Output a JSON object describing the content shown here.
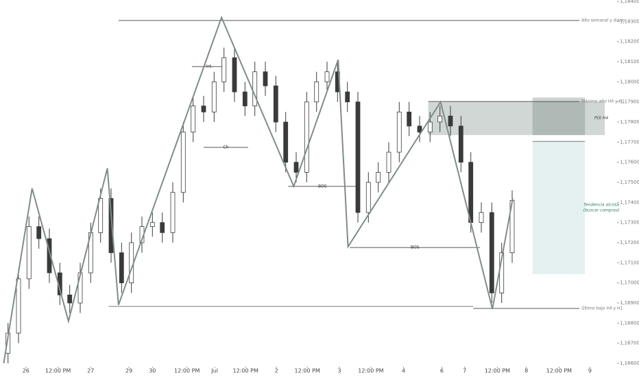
{
  "chart_data": {
    "type": "candlestick",
    "xlim": [
      0,
      100
    ],
    "ylim": [
      1.16583,
      1.18407
    ],
    "xticks": [
      {
        "value": 4.2,
        "label": "26"
      },
      {
        "value": 9.4,
        "label": "12:00 PM"
      },
      {
        "value": 14.7,
        "label": "27"
      },
      {
        "value": 20.9,
        "label": "29"
      },
      {
        "value": 24.7,
        "label": "30"
      },
      {
        "value": 30.3,
        "label": "12:00 PM"
      },
      {
        "value": 34.8,
        "label": "Jul"
      },
      {
        "value": 39.8,
        "label": "12:00 PM"
      },
      {
        "value": 44.8,
        "label": "2"
      },
      {
        "value": 49.8,
        "label": "12:00 PM"
      },
      {
        "value": 55,
        "label": "3"
      },
      {
        "value": 60.1,
        "label": "12:00 PM"
      },
      {
        "value": 65.4,
        "label": "4"
      },
      {
        "value": 71.6,
        "label": "6"
      },
      {
        "value": 75.3,
        "label": "7"
      },
      {
        "value": 80.6,
        "label": "12:00 PM"
      },
      {
        "value": 85.3,
        "label": "8"
      },
      {
        "value": 90.6,
        "label": "12:00 PM"
      },
      {
        "value": 95.6,
        "label": "9"
      }
    ],
    "yticks": [
      {
        "value": 1.166,
        "label": "1,16600"
      },
      {
        "value": 1.167,
        "label": "1,16700"
      },
      {
        "value": 1.168,
        "label": "1,16800"
      },
      {
        "value": 1.169,
        "label": "1,16900"
      },
      {
        "value": 1.17,
        "label": "1,17000"
      },
      {
        "value": 1.171,
        "label": "1,17100"
      },
      {
        "value": 1.172,
        "label": "1,17200"
      },
      {
        "value": 1.173,
        "label": "1,17300"
      },
      {
        "value": 1.174,
        "label": "1,17400"
      },
      {
        "value": 1.175,
        "label": "1,17500"
      },
      {
        "value": 1.176,
        "label": "1,17600"
      },
      {
        "value": 1.177,
        "label": "1,17700"
      },
      {
        "value": 1.178,
        "label": "1,17800"
      },
      {
        "value": 1.179,
        "label": "1,17900"
      },
      {
        "value": 1.18,
        "label": "1,18000"
      },
      {
        "value": 1.181,
        "label": "1,18100"
      },
      {
        "value": 1.182,
        "label": "1,18200"
      },
      {
        "value": 1.183,
        "label": "1,18300"
      },
      {
        "value": 1.184,
        "label": "1,18400"
      }
    ],
    "up_color": "#ffffff",
    "down_color": "#3a3a3a",
    "wick_color": "#3a3a3a",
    "x": [
      1.3,
      3,
      4.7,
      6.3,
      8,
      9.7,
      11.3,
      13,
      14.7,
      16.3,
      18,
      19.7,
      21.3,
      23,
      24.7,
      26.3,
      28,
      29.7,
      31.3,
      33,
      34.7,
      36.3,
      38,
      39.7,
      41.3,
      43,
      44.7,
      46.3,
      48,
      49.7,
      51.3,
      53,
      54.7,
      56.3,
      58,
      59.7,
      61.3,
      63,
      64.7,
      66.3,
      68,
      69.7,
      71.3,
      73,
      74.7,
      76.3,
      78,
      79.7,
      81.3,
      83
    ],
    "open": [
      1.1665,
      1.1675,
      1.1702,
      1.1728,
      1.1722,
      1.1705,
      1.1694,
      1.169,
      1.1705,
      1.1725,
      1.1742,
      1.1715,
      1.17,
      1.172,
      1.1728,
      1.173,
      1.1725,
      1.1745,
      1.1775,
      1.1788,
      1.1785,
      1.18,
      1.1812,
      1.1795,
      1.1788,
      1.1805,
      1.1798,
      1.178,
      1.176,
      1.1755,
      1.179,
      1.18,
      1.1805,
      1.1795,
      1.179,
      1.1735,
      1.175,
      1.1755,
      1.1765,
      1.1785,
      1.1778,
      1.1775,
      1.178,
      1.1783,
      1.1778,
      1.176,
      1.173,
      1.1735,
      1.1695,
      1.1715
    ],
    "high": [
      1.168,
      1.1707,
      1.1733,
      1.1733,
      1.1727,
      1.171,
      1.1699,
      1.171,
      1.173,
      1.1747,
      1.1747,
      1.172,
      1.1725,
      1.1733,
      1.1735,
      1.1735,
      1.175,
      1.178,
      1.1793,
      1.1793,
      1.1805,
      1.1817,
      1.1817,
      1.18,
      1.181,
      1.181,
      1.1803,
      1.1785,
      1.1765,
      1.1795,
      1.1805,
      1.181,
      1.181,
      1.18,
      1.1795,
      1.1755,
      1.176,
      1.177,
      1.179,
      1.179,
      1.1783,
      1.1785,
      1.1788,
      1.1788,
      1.1783,
      1.1765,
      1.174,
      1.174,
      1.172,
      1.1746
    ],
    "low": [
      1.166,
      1.167,
      1.1697,
      1.1717,
      1.17,
      1.1689,
      1.1685,
      1.1685,
      1.17,
      1.172,
      1.171,
      1.1695,
      1.1695,
      1.1715,
      1.1723,
      1.172,
      1.172,
      1.174,
      1.177,
      1.178,
      1.178,
      1.1795,
      1.179,
      1.1783,
      1.1783,
      1.1793,
      1.1775,
      1.1755,
      1.175,
      1.175,
      1.1785,
      1.1795,
      1.179,
      1.1785,
      1.173,
      1.173,
      1.1745,
      1.175,
      1.176,
      1.1773,
      1.177,
      1.177,
      1.1775,
      1.1773,
      1.1755,
      1.1725,
      1.1725,
      1.169,
      1.169,
      1.171
    ],
    "close": [
      1.1675,
      1.1702,
      1.1728,
      1.1722,
      1.1705,
      1.1694,
      1.169,
      1.1705,
      1.1725,
      1.1742,
      1.1715,
      1.17,
      1.172,
      1.1728,
      1.173,
      1.1725,
      1.1745,
      1.1775,
      1.1788,
      1.1785,
      1.18,
      1.1812,
      1.1795,
      1.1788,
      1.1805,
      1.1798,
      1.178,
      1.176,
      1.1755,
      1.179,
      1.18,
      1.1805,
      1.1795,
      1.179,
      1.1735,
      1.175,
      1.1755,
      1.1765,
      1.1785,
      1.1778,
      1.1775,
      1.178,
      1.1783,
      1.1778,
      1.176,
      1.173,
      1.1735,
      1.1695,
      1.1715,
      1.1741
    ],
    "zigzag": {
      "color": "#7f8c87",
      "x": [
        0.6,
        5.2,
        11.1,
        17.4,
        19.2,
        35.9,
        47.6,
        54.8,
        56.4,
        71.4,
        79.8,
        83.1
      ],
      "y": [
        1.166,
        1.1747,
        1.1681,
        1.1757,
        1.1689,
        1.1832,
        1.1748,
        1.1811,
        1.1718,
        1.179,
        1.1687,
        1.1742
      ]
    },
    "zones": [
      {
        "label": [
          "POI H4"
        ],
        "ylim": [
          1.17735,
          1.17902
        ],
        "xlim": [
          69.4,
          98
        ],
        "color": "rgba(120,140,135,0.35)",
        "label_color": "#444"
      },
      {
        "ylim": [
          1.17735,
          1.17922
        ],
        "xlim": [
          86.3,
          94.8
        ],
        "color": "rgba(100,115,110,0.3)"
      },
      {
        "label": [
          "Tendencia alcista",
          "(buscar compras)"
        ],
        "ylim": [
          1.17043,
          1.17704
        ],
        "xlim": [
          86.3,
          94.8
        ],
        "color": "rgba(170,210,205,0.3)",
        "label_color": "#2e7d5b"
      }
    ],
    "levels": [
      {
        "label": "Alto semanal y diario",
        "value": 1.18305,
        "x": [
          19.2,
          93.9
        ]
      },
      {
        "label": "Máximo alto H4 y H1",
        "value": 1.17902,
        "x": [
          69.4,
          93.9
        ]
      },
      {
        "label": "Último bajo H4 y H1",
        "value": 1.16873,
        "x": [
          76.7,
          93.9
        ]
      },
      {
        "value": 1.16883,
        "x": [
          17.6,
          76.7
        ]
      },
      {
        "label": "BOS",
        "value": 1.1748,
        "x": [
          46.7,
          57.8
        ]
      },
      {
        "label": "BOS",
        "value": 1.17176,
        "x": [
          56.7,
          77.8
        ]
      },
      {
        "label": "Ch",
        "value": 1.17674,
        "x": [
          33,
          40.2
        ]
      },
      {
        "label": "Int.",
        "value": 1.18076,
        "x": [
          31.1,
          36.7
        ]
      },
      {
        "value": 1.17704,
        "x": [
          86.3,
          94.8
        ]
      }
    ]
  }
}
